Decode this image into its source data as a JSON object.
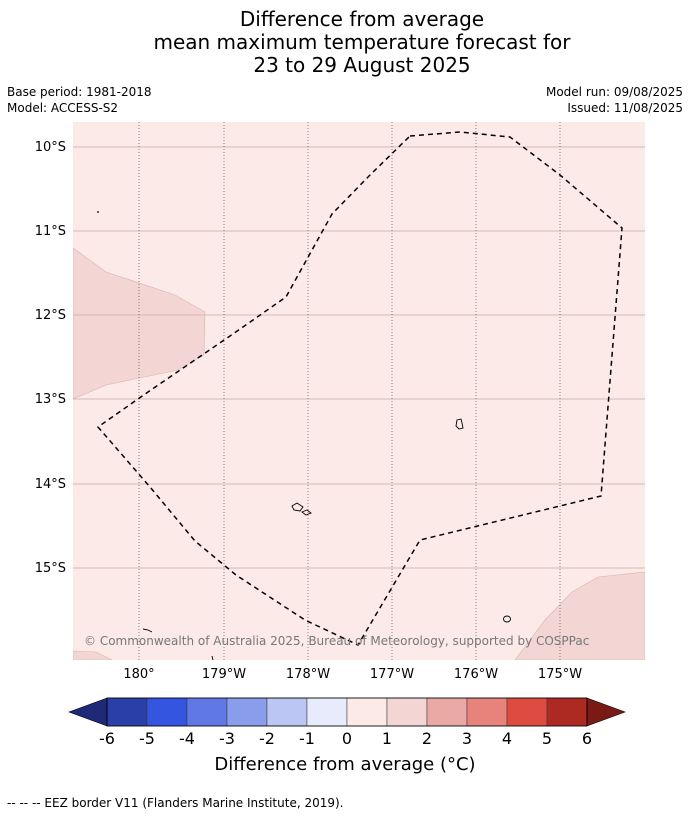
{
  "title": {
    "line1": "Difference from average",
    "line2": "mean maximum temperature forecast for",
    "line3": "23 to 29 August 2025"
  },
  "meta": {
    "base_period": "Base period: 1981-2018",
    "model": "Model: ACCESS-S2",
    "model_run": "Model run: 09/08/2025",
    "issued": "Issued: 11/08/2025"
  },
  "map": {
    "lat_labels": [
      "10°S",
      "11°S",
      "12°S",
      "13°S",
      "14°S",
      "15°S"
    ],
    "lon_labels": [
      "180°",
      "179°W",
      "178°W",
      "177°W",
      "176°W",
      "175°W"
    ],
    "copyright": "© Commonwealth of Australia 2025, Bureau of Meteorology, supported by COSPPac",
    "background_color": "#fbeae8",
    "anomaly_patch_color": "#f3d6d3",
    "eez_line_color": "#000000"
  },
  "colorbar": {
    "tick_labels": [
      "-6",
      "-5",
      "-4",
      "-3",
      "-2",
      "-1",
      "0",
      "1",
      "2",
      "3",
      "4",
      "5",
      "6"
    ],
    "colors": [
      "#2a3fa8",
      "#3355e0",
      "#5f78e6",
      "#8a9cec",
      "#bcc6f5",
      "#e8ebfb",
      "#fbeae8",
      "#f3d6d3",
      "#eba9a6",
      "#e8837c",
      "#de4b40",
      "#ad2a22"
    ],
    "extend_low_color": "#1e2a78",
    "extend_high_color": "#7a1a14",
    "label": "Difference from average (°C)"
  },
  "footer": "-- -- -- EEZ border V11 (Flanders Marine Institute, 2019)."
}
